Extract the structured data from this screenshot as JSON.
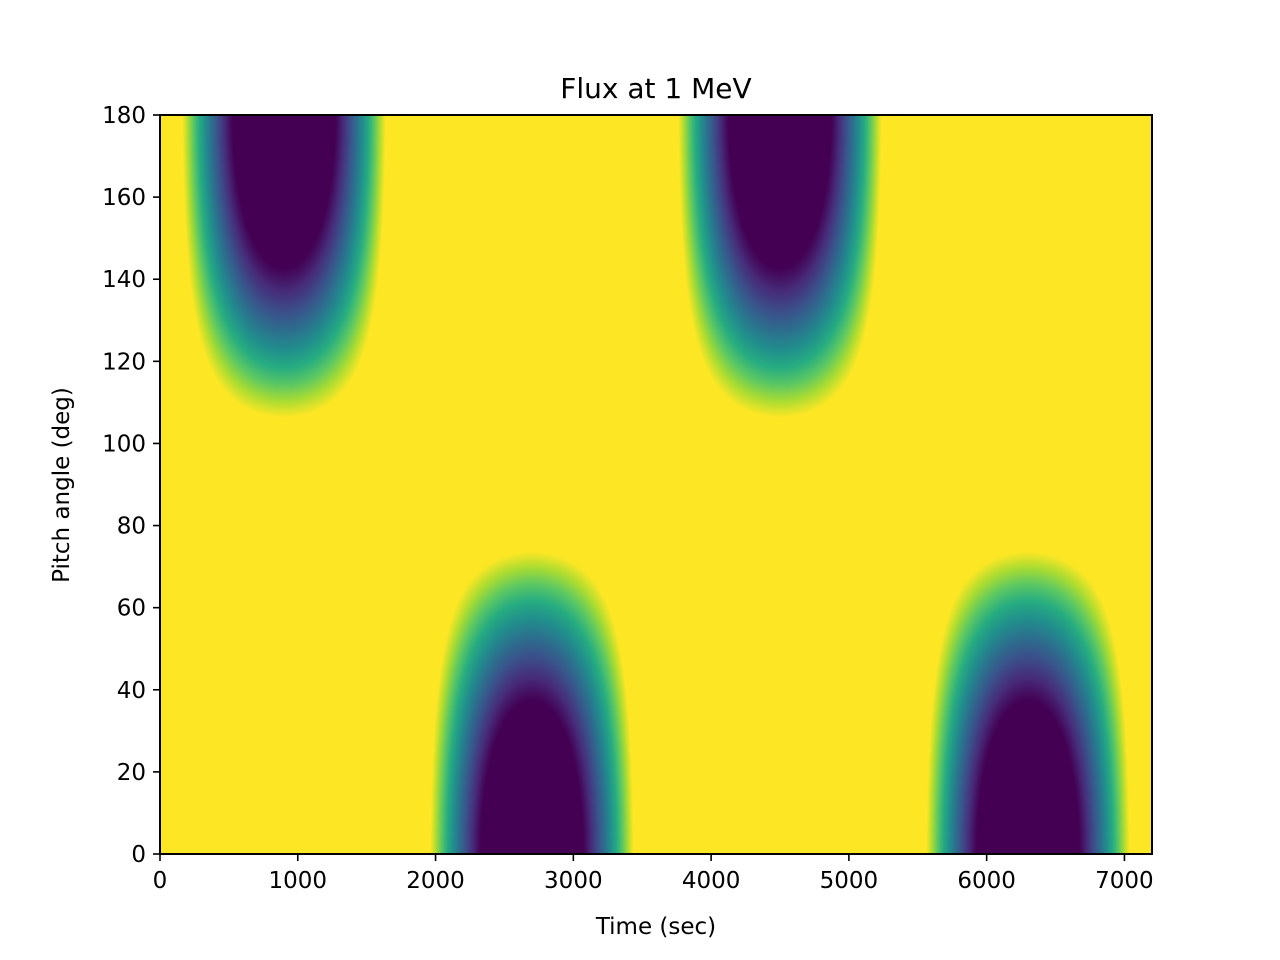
{
  "chart_data": {
    "type": "heatmap",
    "title": "Flux at 1 MeV",
    "xlabel": "Time (sec)",
    "ylabel": "Pitch angle (deg)",
    "xlim": [
      0,
      7200
    ],
    "ylim": [
      0,
      180
    ],
    "x_ticks": [
      0,
      1000,
      2000,
      3000,
      4000,
      5000,
      6000,
      7000
    ],
    "y_ticks": [
      0,
      20,
      40,
      60,
      80,
      100,
      120,
      140,
      160,
      180
    ],
    "colormap": "viridis",
    "color_range": [
      0,
      1
    ],
    "field_model": {
      "description": "flux pattern swings between low and high pitch angles with a period of about 3600 s",
      "period_sec": 3600,
      "phase_peak_time_sec": 900,
      "dark_spots": [
        {
          "time_sec": 950,
          "pitch_deg": 180
        },
        {
          "time_sec": 2700,
          "pitch_deg": 0
        },
        {
          "time_sec": 4500,
          "pitch_deg": 180
        },
        {
          "time_sec": 6300,
          "pitch_deg": 0
        }
      ]
    },
    "grid": false,
    "colorbar": false
  }
}
